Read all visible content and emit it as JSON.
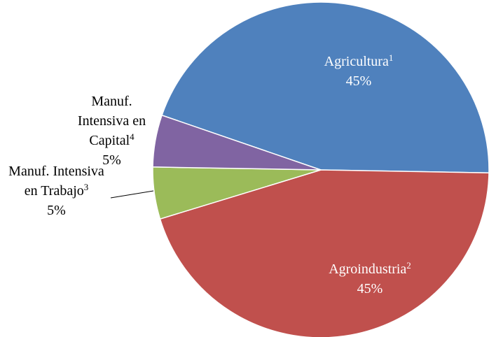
{
  "chart_data": {
    "type": "pie",
    "categories": [
      "Agricultura",
      "Agroindustria",
      "Manuf. Intensiva en Trabajo",
      "Manuf. Intensiva en Capital"
    ],
    "footnotes": [
      "1",
      "2",
      "3",
      "4"
    ],
    "values": [
      45,
      45,
      5,
      5
    ],
    "value_labels": [
      "45%",
      "45%",
      "5%",
      "5%"
    ],
    "colors": [
      "#4f81bd",
      "#c0504d",
      "#9bbb59",
      "#8064a2"
    ]
  }
}
